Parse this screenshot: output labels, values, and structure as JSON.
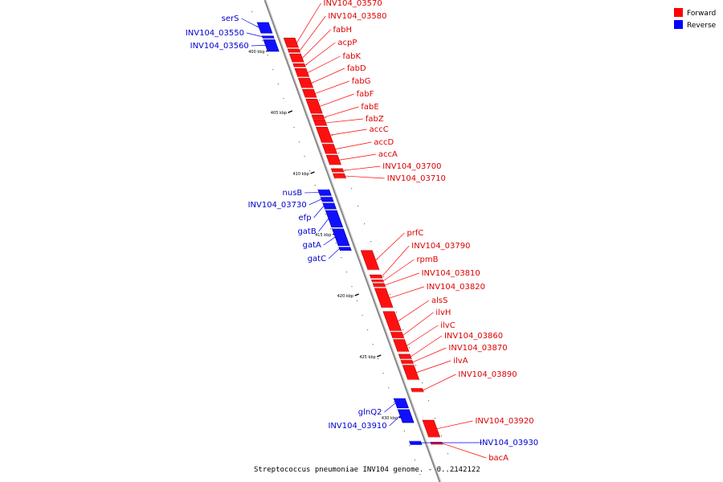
{
  "title": "Streptococcus pneumoniae INV104 genome. - 0..2142122",
  "legend": [
    {
      "label": "Forward",
      "color": "#ff0000"
    },
    {
      "label": "Reverse",
      "color": "#0000ff"
    }
  ],
  "axis": {
    "start_kbp": 397.5,
    "end_kbp": 432.2,
    "ticks": [
      {
        "kbp": 400,
        "label": "400 kbp"
      },
      {
        "kbp": 405,
        "label": "405 kbp"
      },
      {
        "kbp": 410,
        "label": "410 kbp"
      },
      {
        "kbp": 415,
        "label": "415 kbp"
      },
      {
        "kbp": 420,
        "label": "420 kbp"
      },
      {
        "kbp": 425,
        "label": "425 kbp"
      },
      {
        "kbp": 430,
        "label": "430 kbp"
      }
    ]
  },
  "genes": [
    {
      "name": "serS",
      "strand": "reverse",
      "start": 397.6,
      "end": 398.5
    },
    {
      "name": "INV104_03550",
      "strand": "reverse",
      "start": 398.7,
      "end": 398.9
    },
    {
      "name": "INV104_03560",
      "strand": "reverse",
      "start": 399.0,
      "end": 400.0
    },
    {
      "name": "INV104_03570",
      "strand": "forward",
      "start": 398.9,
      "end": 399.7
    },
    {
      "name": "INV104_03580",
      "strand": "forward",
      "start": 399.8,
      "end": 400.1
    },
    {
      "name": "fabH",
      "strand": "forward",
      "start": 400.2,
      "end": 400.9
    },
    {
      "name": "acpP",
      "strand": "forward",
      "start": 401.0,
      "end": 401.3
    },
    {
      "name": "fabK",
      "strand": "forward",
      "start": 401.4,
      "end": 402.1
    },
    {
      "name": "fabD",
      "strand": "forward",
      "start": 402.2,
      "end": 403.0
    },
    {
      "name": "fabG",
      "strand": "forward",
      "start": 403.1,
      "end": 403.8
    },
    {
      "name": "fabF",
      "strand": "forward",
      "start": 403.9,
      "end": 405.1
    },
    {
      "name": "fabE",
      "strand": "forward",
      "start": 405.2,
      "end": 405.6
    },
    {
      "name": "fabZ",
      "strand": "forward",
      "start": 405.6,
      "end": 406.1
    },
    {
      "name": "accC",
      "strand": "forward",
      "start": 406.2,
      "end": 407.5
    },
    {
      "name": "accD",
      "strand": "forward",
      "start": 407.6,
      "end": 408.4
    },
    {
      "name": "accA",
      "strand": "forward",
      "start": 408.5,
      "end": 409.3
    },
    {
      "name": "INV104_03700",
      "strand": "forward",
      "start": 409.6,
      "end": 409.9
    },
    {
      "name": "INV104_03710",
      "strand": "forward",
      "start": 410.0,
      "end": 410.4
    },
    {
      "name": "nusB",
      "strand": "reverse",
      "start": 411.3,
      "end": 411.8
    },
    {
      "name": "INV104_03730",
      "strand": "reverse",
      "start": 411.9,
      "end": 412.3
    },
    {
      "name": "efp",
      "strand": "reverse",
      "start": 412.4,
      "end": 412.9
    },
    {
      "name": "gatB",
      "strand": "reverse",
      "start": 413.0,
      "end": 414.4
    },
    {
      "name": "gatA",
      "strand": "reverse",
      "start": 414.5,
      "end": 415.9
    },
    {
      "name": "gatC",
      "strand": "reverse",
      "start": 416.0,
      "end": 416.3
    },
    {
      "name": "prfC",
      "strand": "forward",
      "start": 416.3,
      "end": 417.9
    },
    {
      "name": "INV104_03790",
      "strand": "forward",
      "start": 418.3,
      "end": 418.6
    },
    {
      "name": "rpmB",
      "strand": "forward",
      "start": 418.7,
      "end": 418.9
    },
    {
      "name": "INV104_03810",
      "strand": "forward",
      "start": 419.0,
      "end": 419.3
    },
    {
      "name": "INV104_03820",
      "strand": "forward",
      "start": 419.4,
      "end": 421.0
    },
    {
      "name": "alsS",
      "strand": "forward",
      "start": 421.3,
      "end": 422.9
    },
    {
      "name": "ilvH",
      "strand": "forward",
      "start": 423.0,
      "end": 423.5
    },
    {
      "name": "ilvC",
      "strand": "forward",
      "start": 423.6,
      "end": 424.6
    },
    {
      "name": "INV104_03860",
      "strand": "forward",
      "start": 424.8,
      "end": 425.2
    },
    {
      "name": "INV104_03870",
      "strand": "forward",
      "start": 425.3,
      "end": 425.6
    },
    {
      "name": "ilvA",
      "strand": "forward",
      "start": 425.7,
      "end": 426.9
    },
    {
      "name": "INV104_03890",
      "strand": "forward",
      "start": 427.6,
      "end": 427.9
    },
    {
      "name": "glnQ2",
      "strand": "reverse",
      "start": 428.4,
      "end": 429.2
    },
    {
      "name": "INV104_03910",
      "strand": "reverse",
      "start": 429.3,
      "end": 430.4
    },
    {
      "name": "INV104_03920",
      "strand": "forward",
      "start": 430.2,
      "end": 431.6
    },
    {
      "name": "INV104_03930",
      "strand": "reverse",
      "start": 431.9,
      "end": 432.2
    },
    {
      "name": "bacA",
      "strand": "forward",
      "start": 432.0,
      "end": 432.2
    }
  ]
}
